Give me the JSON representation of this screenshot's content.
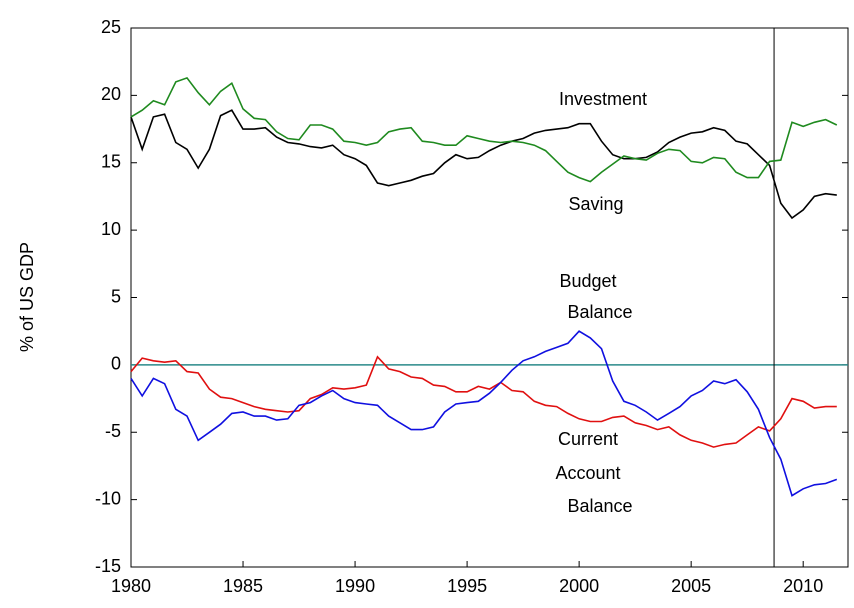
{
  "chart_data": {
    "type": "line",
    "y_label": "% of US GDP",
    "annotations": [
      "Investment",
      "Saving",
      "Budget",
      "Balance",
      "Current",
      "Account",
      "Balance"
    ],
    "x": [
      1980,
      1980.5,
      1981,
      1981.5,
      1982,
      1982.5,
      1983,
      1983.5,
      1984,
      1984.5,
      1985,
      1985.5,
      1986,
      1986.5,
      1987,
      1987.5,
      1988,
      1988.5,
      1989,
      1989.5,
      1990,
      1990.5,
      1991,
      1991.5,
      1992,
      1992.5,
      1993,
      1993.5,
      1994,
      1994.5,
      1995,
      1995.5,
      1996,
      1996.5,
      1997,
      1997.5,
      1998,
      1998.5,
      1999,
      1999.5,
      2000,
      2000.5,
      2001,
      2001.5,
      2002,
      2002.5,
      2003,
      2003.5,
      2004,
      2004.5,
      2005,
      2005.5,
      2006,
      2006.5,
      2007,
      2007.5,
      2008,
      2008.5,
      2009,
      2009.5,
      2010,
      2010.5,
      2011,
      2011.5
    ],
    "series": [
      {
        "color": "#000000",
        "values": [
          18.4,
          16.0,
          18.4,
          18.6,
          16.5,
          16.0,
          14.6,
          16.0,
          18.5,
          18.9,
          17.5,
          17.5,
          17.6,
          16.9,
          16.5,
          16.4,
          16.2,
          16.1,
          16.3,
          15.6,
          15.3,
          14.8,
          13.5,
          13.3,
          13.5,
          13.7,
          14.0,
          14.2,
          15.0,
          15.6,
          15.3,
          15.4,
          15.9,
          16.3,
          16.6,
          16.8,
          17.2,
          17.4,
          17.5,
          17.6,
          17.9,
          17.9,
          16.6,
          15.6,
          15.3,
          15.3,
          15.4,
          15.8,
          16.5,
          16.9,
          17.2,
          17.3,
          17.6,
          17.4,
          16.6,
          16.4,
          15.6,
          14.8,
          12.0,
          10.9,
          11.5,
          12.5,
          12.7,
          12.6
        ]
      },
      {
        "color": "#1f8a1f",
        "values": [
          18.4,
          18.9,
          19.6,
          19.3,
          21.0,
          21.3,
          20.2,
          19.3,
          20.3,
          20.9,
          19.0,
          18.3,
          18.2,
          17.3,
          16.8,
          16.7,
          17.8,
          17.8,
          17.5,
          16.6,
          16.5,
          16.3,
          16.5,
          17.3,
          17.5,
          17.6,
          16.6,
          16.5,
          16.3,
          16.3,
          17.0,
          16.8,
          16.6,
          16.5,
          16.6,
          16.5,
          16.3,
          15.9,
          15.1,
          14.3,
          13.9,
          13.6,
          14.3,
          14.9,
          15.5,
          15.3,
          15.2,
          15.7,
          16.0,
          15.9,
          15.1,
          15.0,
          15.4,
          15.3,
          14.3,
          13.9,
          13.9,
          15.1,
          15.2,
          18.0,
          17.7,
          18.0,
          18.2,
          17.8
        ]
      },
      {
        "color": "#e01010",
        "values": [
          -0.5,
          0.5,
          0.3,
          0.2,
          0.3,
          -0.5,
          -0.6,
          -1.8,
          -2.4,
          -2.5,
          -2.8,
          -3.1,
          -3.3,
          -3.4,
          -3.5,
          -3.4,
          -2.5,
          -2.2,
          -1.7,
          -1.8,
          -1.7,
          -1.5,
          0.6,
          -0.3,
          -0.5,
          -0.9,
          -1.0,
          -1.5,
          -1.6,
          -2.0,
          -2.0,
          -1.6,
          -1.8,
          -1.3,
          -1.9,
          -2.0,
          -2.7,
          -3.0,
          -3.1,
          -3.6,
          -4.0,
          -4.2,
          -4.2,
          -3.9,
          -3.8,
          -4.3,
          -4.5,
          -4.8,
          -4.6,
          -5.2,
          -5.6,
          -5.8,
          -6.1,
          -5.9,
          -5.8,
          -5.2,
          -4.6,
          -4.9,
          -4.0,
          -2.5,
          -2.7,
          -3.2,
          -3.1,
          -3.1
        ]
      },
      {
        "color": "#1010e0",
        "values": [
          -1.0,
          -2.3,
          -1.0,
          -1.4,
          -3.3,
          -3.8,
          -5.6,
          -5.0,
          -4.4,
          -3.6,
          -3.5,
          -3.8,
          -3.8,
          -4.1,
          -4.0,
          -3.0,
          -2.8,
          -2.3,
          -1.9,
          -2.5,
          -2.8,
          -2.9,
          -3.0,
          -3.8,
          -4.3,
          -4.8,
          -4.8,
          -4.6,
          -3.5,
          -2.9,
          -2.8,
          -2.7,
          -2.1,
          -1.3,
          -0.4,
          0.3,
          0.6,
          1.0,
          1.3,
          1.6,
          2.5,
          2.0,
          1.2,
          -1.2,
          -2.7,
          -3.0,
          -3.5,
          -4.1,
          -3.6,
          -3.1,
          -2.3,
          -1.9,
          -1.2,
          -1.4,
          -1.1,
          -2.0,
          -3.3,
          -5.4,
          -7.0,
          -9.7,
          -9.2,
          -8.9,
          -8.8,
          -8.5
        ]
      }
    ],
    "hline": {
      "value": 0,
      "color": "#2a8a8a"
    },
    "vline": {
      "value": 2008.7,
      "color": "#000000"
    },
    "xlim": [
      1980,
      2012
    ],
    "xticks": [
      1980,
      1985,
      1990,
      1995,
      2000,
      2005,
      2010
    ],
    "ylim": [
      -15,
      25
    ],
    "yticks": [
      -15,
      -10,
      -5,
      0,
      5,
      10,
      15,
      20,
      25
    ]
  }
}
